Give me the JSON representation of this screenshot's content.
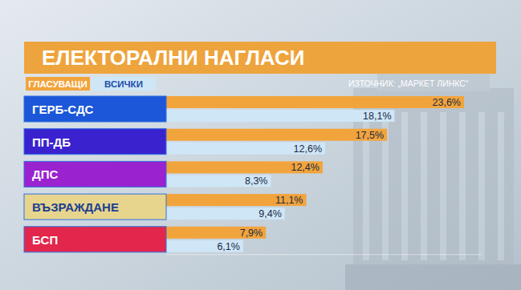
{
  "chart_data": {
    "type": "bar",
    "orientation": "horizontal",
    "title": "ЕЛЕКТОРАЛНИ НАГЛАСИ",
    "source": "ИЗТОЧНИК: „МАРКЕТ ЛИНКС“",
    "categories": [
      "ГЕРБ-СДС",
      "ПП-ДБ",
      "ДПС",
      "ВЪЗРАЖДАНЕ",
      "БСП"
    ],
    "series": [
      {
        "name": "ГЛАСУВАЩИ",
        "color": "#f2a43c",
        "values": [
          23.6,
          17.5,
          12.4,
          11.1,
          7.9
        ],
        "value_labels": [
          "23,6%",
          "17,5%",
          "12,4%",
          "11,1%",
          "7,9%"
        ]
      },
      {
        "name": "ВСИЧКИ",
        "color": "#cfe6f7",
        "values": [
          18.1,
          12.6,
          8.3,
          9.4,
          6.1
        ],
        "value_labels": [
          "18,1%",
          "12,6%",
          "8,3%",
          "9,4%",
          "6,1%"
        ]
      }
    ],
    "xlim": [
      0,
      25
    ],
    "data_labels": true,
    "tick_labels": false,
    "legend": "top-left"
  }
}
